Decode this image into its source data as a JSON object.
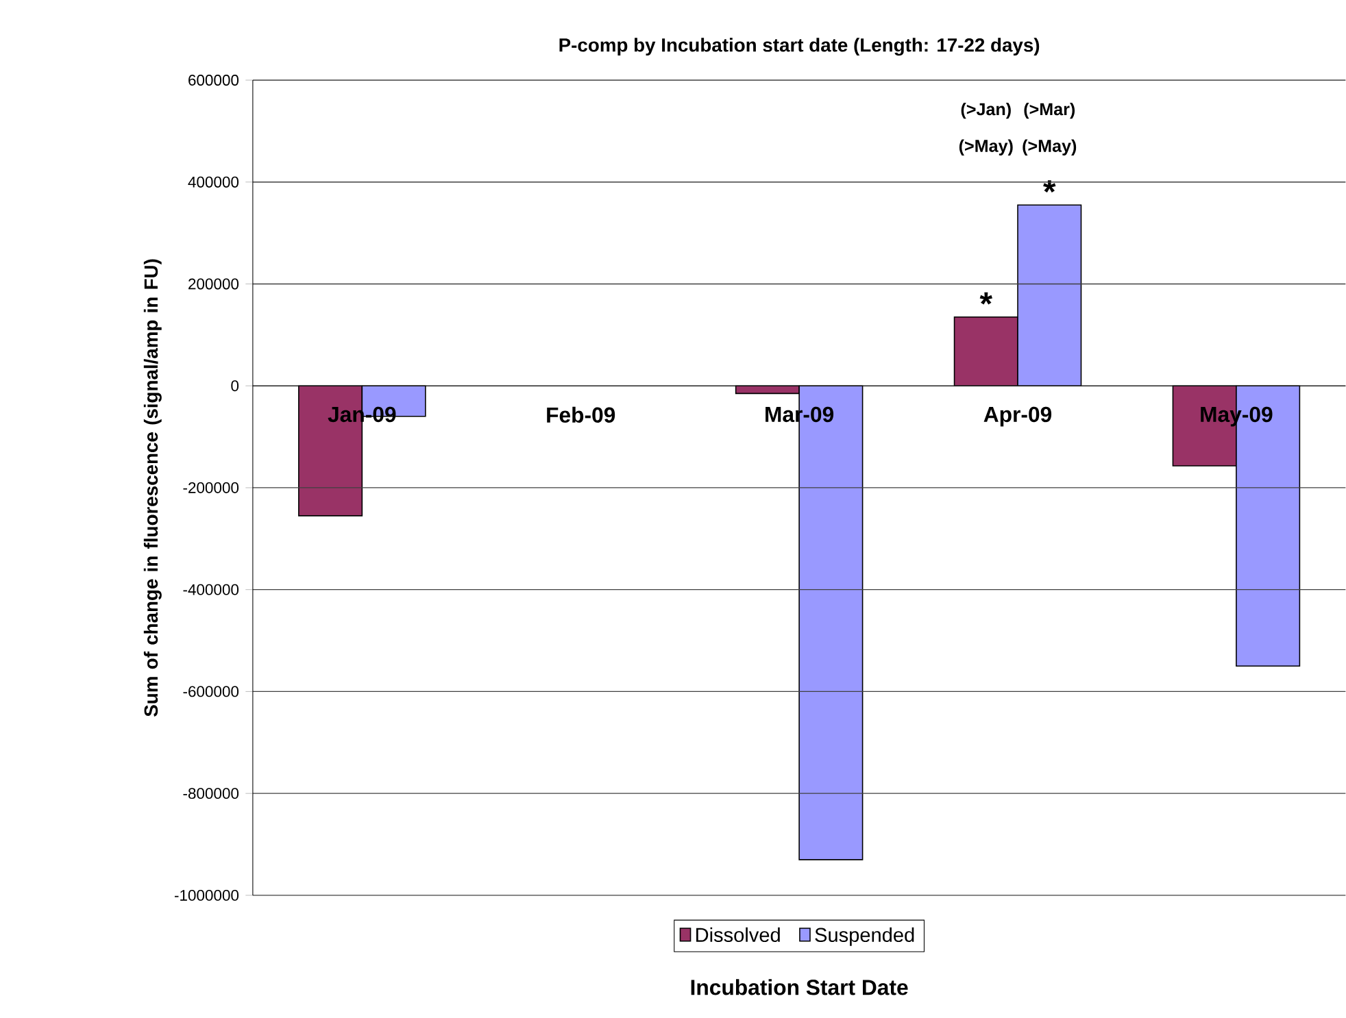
{
  "chart_data": {
    "type": "bar",
    "title": "P-comp by Incubation start date  (Length: 17-22 days)",
    "xlabel": "Incubation Start Date",
    "ylabel": "Sum of change in fluorescence (signal/amp in FU)",
    "categories": [
      "Jan-09",
      "Feb-09",
      "Mar-09",
      "Apr-09",
      "May-09"
    ],
    "series": [
      {
        "name": "Dissolved",
        "color": "#993366",
        "values": [
          -255000,
          null,
          -15000,
          135000,
          -157000
        ]
      },
      {
        "name": "Suspended",
        "color": "#9999ff",
        "values": [
          -60000,
          null,
          -930000,
          355000,
          -550000
        ]
      }
    ],
    "ylim": [
      -1000000,
      600000
    ],
    "yticks": [
      -1000000,
      -800000,
      -600000,
      -400000,
      -200000,
      0,
      200000,
      400000,
      600000
    ],
    "grid": "y",
    "legend": "bottom",
    "annotations": [
      {
        "text": "*",
        "x": "Apr-09",
        "y": 135000
      },
      {
        "text": "*",
        "x": "Apr-09",
        "y": 355000
      },
      "(>Jan)",
      "(>Mar)",
      "(>May)",
      "(>May)"
    ]
  }
}
